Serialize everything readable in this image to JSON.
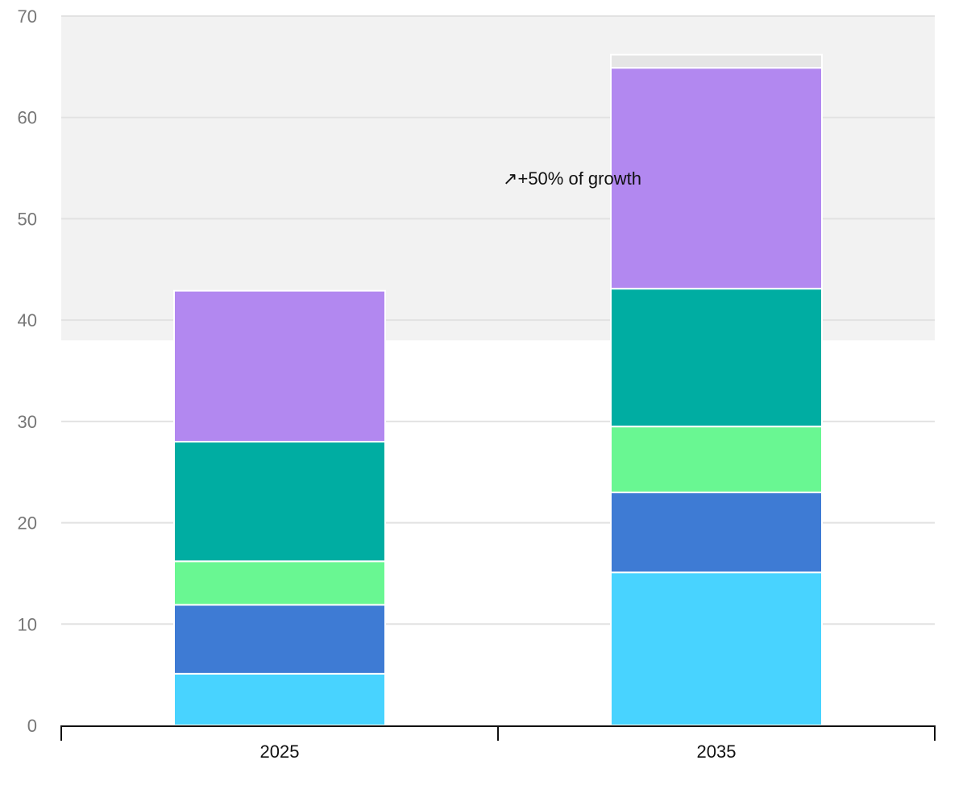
{
  "chart_data": {
    "type": "bar",
    "stacked": true,
    "title": "",
    "xlabel": "",
    "ylabel": "",
    "ylim": [
      0,
      70
    ],
    "yticks": [
      0,
      10,
      20,
      30,
      40,
      50,
      60,
      70
    ],
    "grid": true,
    "legend": "none",
    "categories": [
      "2025",
      "2035"
    ],
    "series": [
      {
        "color": "#48d3ff",
        "values": [
          5.1,
          15.1
        ]
      },
      {
        "color": "#3e7bd4",
        "values": [
          6.8,
          7.9
        ]
      },
      {
        "color": "#69f792",
        "values": [
          4.3,
          6.5
        ]
      },
      {
        "color": "#00ada2",
        "values": [
          11.8,
          13.6
        ]
      },
      {
        "color": "#b288f0",
        "values": [
          14.9,
          21.8
        ]
      },
      {
        "color": "#e5e5e5",
        "values": [
          0,
          1.3
        ]
      }
    ],
    "highlight_band": {
      "y_from": 38,
      "y_to": 70,
      "color": "#f2f2f2"
    },
    "annotation": {
      "text": "↗+50% of growth",
      "x_between": [
        "2025",
        "2035"
      ],
      "y": 54
    }
  }
}
